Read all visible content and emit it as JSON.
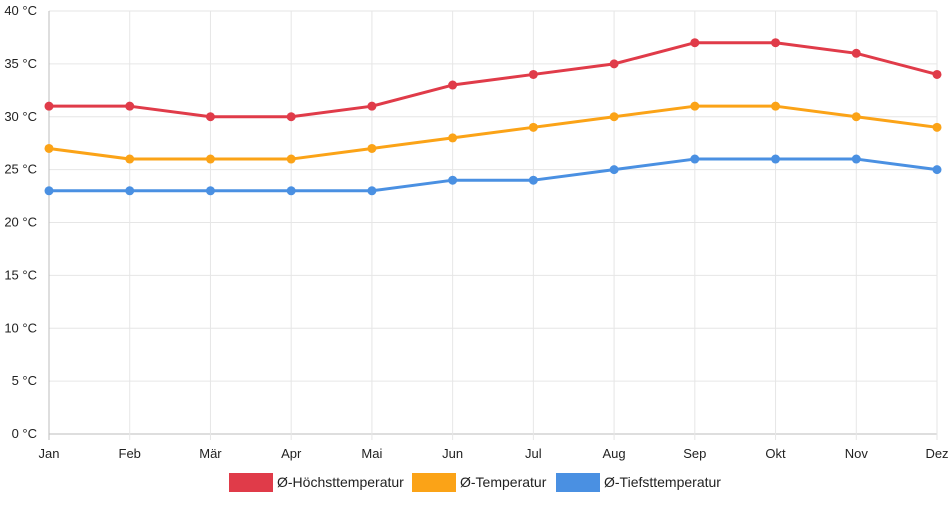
{
  "chart_data": {
    "type": "line",
    "categories": [
      "Jan",
      "Feb",
      "Mär",
      "Apr",
      "Mai",
      "Jun",
      "Jul",
      "Aug",
      "Sep",
      "Okt",
      "Nov",
      "Dez"
    ],
    "y_ticks": [
      "0 °C",
      "5 °C",
      "10 °C",
      "15 °C",
      "20 °C",
      "25 °C",
      "30 °C",
      "35 °C",
      "40 °C"
    ],
    "ylim": [
      0,
      40
    ],
    "ystep": 5,
    "grid": true,
    "legend_position": "bottom",
    "series": [
      {
        "name": "Ø-Höchsttemperatur",
        "color": "#e03b49",
        "values": [
          31,
          31,
          30,
          30,
          31,
          33,
          34,
          35,
          37,
          37,
          36,
          34
        ]
      },
      {
        "name": "Ø-Temperatur",
        "color": "#fba317",
        "values": [
          27,
          26,
          26,
          26,
          27,
          28,
          29,
          30,
          31,
          31,
          30,
          29
        ]
      },
      {
        "name": "Ø-Tiefsttemperatur",
        "color": "#4a90e2",
        "values": [
          23,
          23,
          23,
          23,
          23,
          24,
          24,
          25,
          26,
          26,
          26,
          25
        ]
      }
    ]
  }
}
